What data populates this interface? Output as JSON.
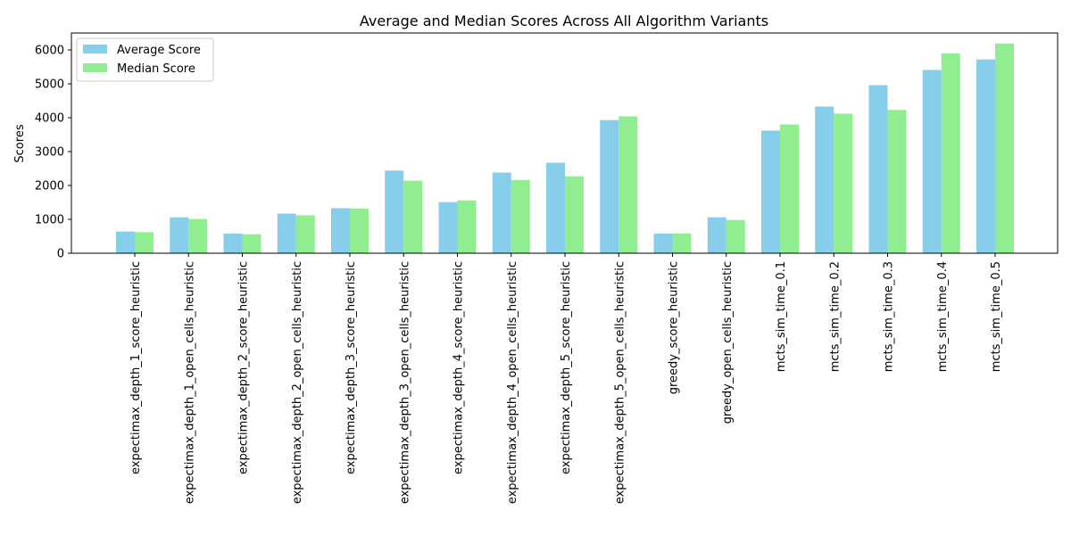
{
  "chart_data": {
    "type": "bar",
    "title": "Average and Median Scores Across All Algorithm Variants",
    "xlabel": "",
    "ylabel": "Scores",
    "ylim": [
      0,
      6500
    ],
    "yticks": [
      0,
      1000,
      2000,
      3000,
      4000,
      5000,
      6000
    ],
    "grid": false,
    "legend_position": "top-left",
    "categories": [
      "expectimax_depth_1_score_heuristic",
      "expectimax_depth_1_open_cells_heuristic",
      "expectimax_depth_2_score_heuristic",
      "expectimax_depth_2_open_cells_heuristic",
      "expectimax_depth_3_score_heuristic",
      "expectimax_depth_3_open_cells_heuristic",
      "expectimax_depth_4_score_heuristic",
      "expectimax_depth_4_open_cells_heuristic",
      "expectimax_depth_5_score_heuristic",
      "expectimax_depth_5_open_cells_heuristic",
      "greedy_score_heuristic",
      "greedy_open_cells_heuristic",
      "mcts_sim_time_0.1",
      "mcts_sim_time_0.2",
      "mcts_sim_time_0.3",
      "mcts_sim_time_0.4",
      "mcts_sim_time_0.5"
    ],
    "series": [
      {
        "name": "Average Score",
        "color": "#87CEEB",
        "values": [
          640,
          1060,
          580,
          1170,
          1330,
          2440,
          1510,
          2380,
          2670,
          3930,
          580,
          1060,
          3620,
          4330,
          4960,
          5410,
          5720
        ]
      },
      {
        "name": "Median Score",
        "color": "#90EE90",
        "values": [
          620,
          1010,
          560,
          1120,
          1320,
          2140,
          1560,
          2160,
          2270,
          4040,
          580,
          980,
          3800,
          4120,
          4230,
          5900,
          6190
        ]
      }
    ]
  }
}
